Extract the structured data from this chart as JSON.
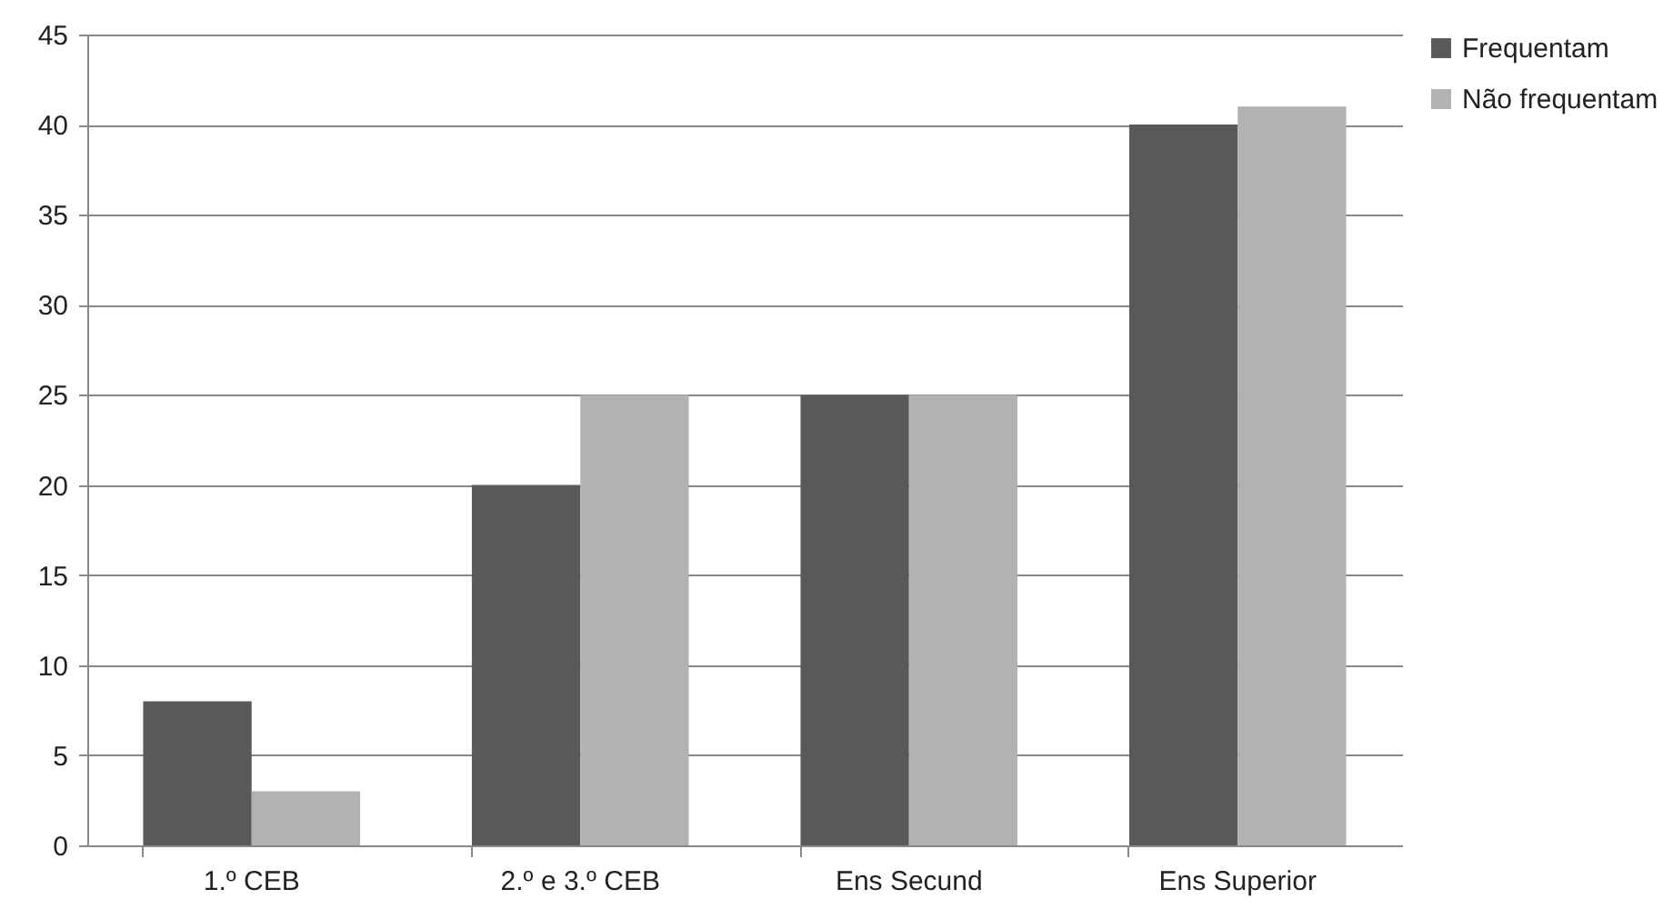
{
  "chart_data": {
    "type": "bar",
    "categories": [
      "1.º CEB",
      "2.º e 3.º CEB",
      "Ens Secund",
      "Ens Superior"
    ],
    "series": [
      {
        "name": "Frequentam",
        "color": "#595959",
        "values": [
          8,
          20,
          25,
          40
        ]
      },
      {
        "name": "Não frequentam",
        "color": "#b2b2b2",
        "values": [
          3,
          25,
          25,
          41
        ]
      }
    ],
    "ylim": [
      0,
      45
    ],
    "yticks": [
      0,
      5,
      10,
      15,
      20,
      25,
      30,
      35,
      40,
      45
    ],
    "grid": "y",
    "legend": "right"
  }
}
